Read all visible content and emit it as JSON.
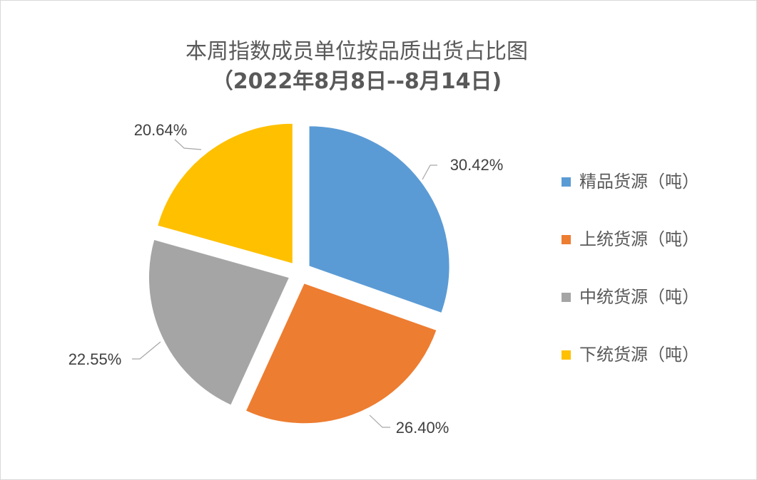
{
  "chart_data": {
    "type": "pie",
    "title": "本周指数成员单位按品质出货占比图",
    "subtitle": "（2022年8月8日--8月14日)",
    "slices": [
      {
        "label": "精品货源（吨）",
        "value": 30.42,
        "display": "30.42%",
        "color": "#5B9BD5"
      },
      {
        "label": "上统货源（吨）",
        "value": 26.4,
        "display": "26.40%",
        "color": "#ED7D31"
      },
      {
        "label": "中统货源（吨）",
        "value": 22.55,
        "display": "22.55%",
        "color": "#A5A5A5"
      },
      {
        "label": "下统货源（吨）",
        "value": 20.64,
        "display": "20.64%",
        "color": "#FFC000"
      }
    ],
    "legend_position": "right",
    "exploded": true
  }
}
